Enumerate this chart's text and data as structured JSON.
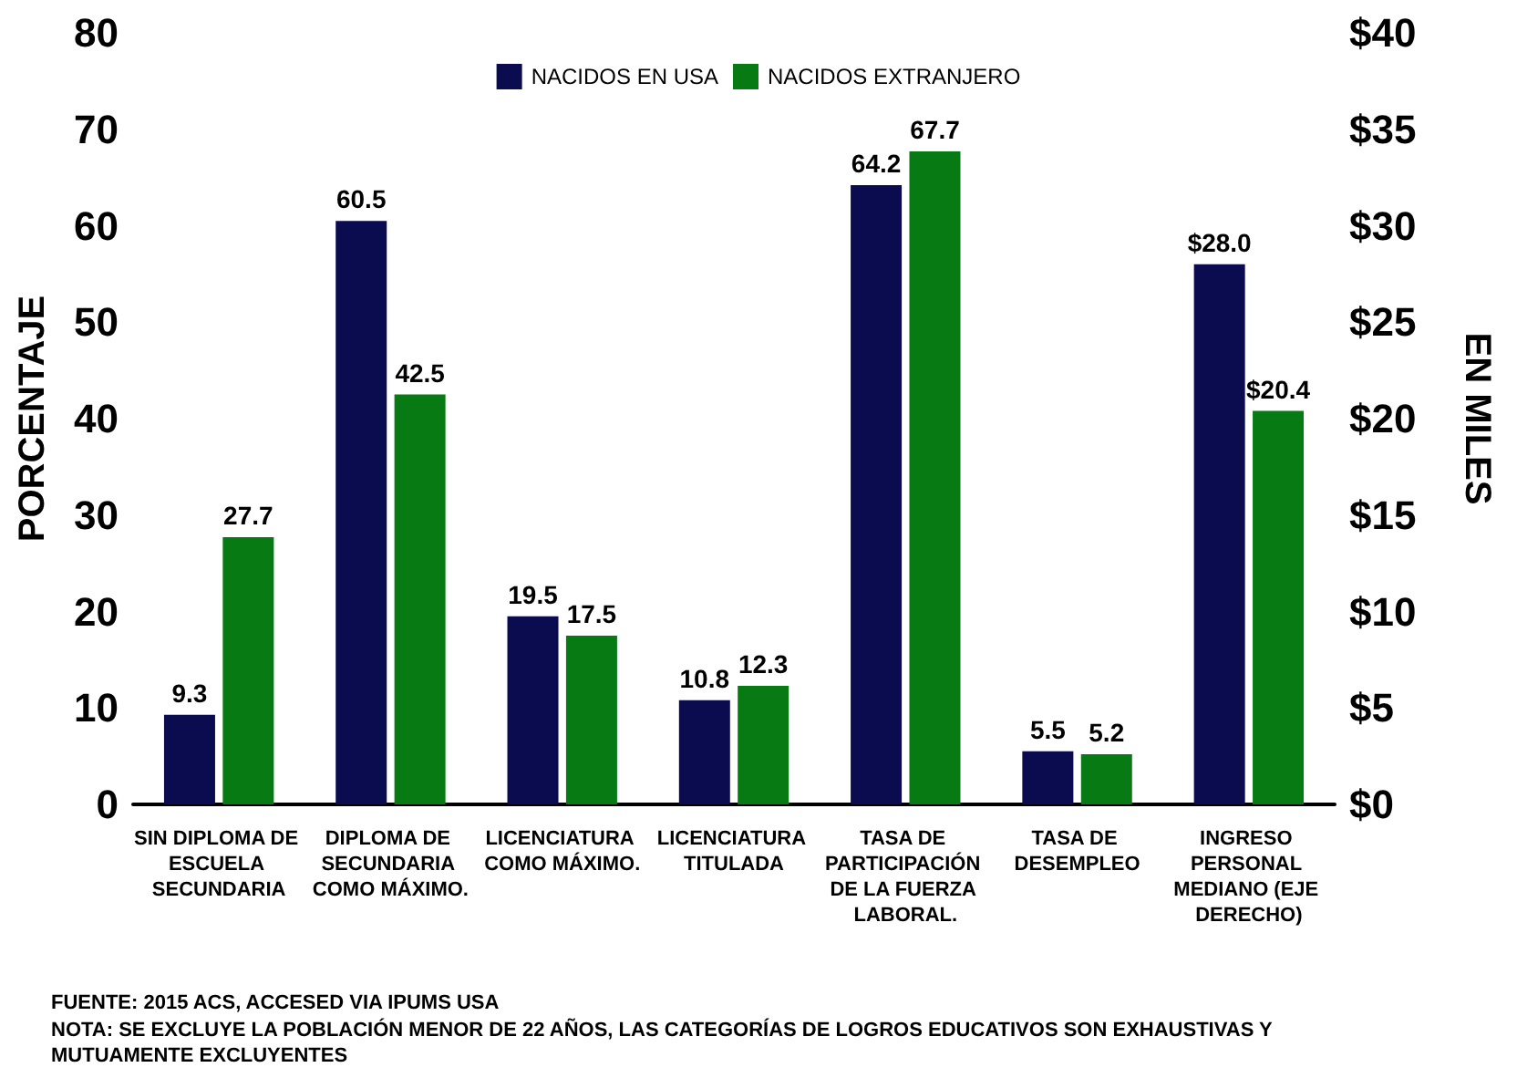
{
  "chart_data": {
    "type": "bar",
    "categories": [
      "SIN DIPLOMA DE ESCUELA SECUNDARIA",
      "DIPLOMA DE SECUNDARIA COMO MÁXIMO.",
      "LICENCIATURA COMO MÁXIMO.",
      "LICENCIATURA TITULADA",
      "TASA DE PARTICIPACIÓN DE LA FUERZA LABORAL.",
      "TASA DE DESEMPLEO",
      "INGRESO PERSONAL MEDIANO (EJE DERECHO)"
    ],
    "series": [
      {
        "name": "NACIDOS EN USA",
        "color": "#0b0b4f",
        "values": [
          9.3,
          60.5,
          19.5,
          10.8,
          64.2,
          5.5,
          null
        ],
        "value_labels": [
          "9.3",
          "60.5",
          "19.5",
          "10.8",
          "64.2",
          "5.5",
          null
        ]
      },
      {
        "name": "NACIDOS EXTRANJERO",
        "color": "#087a14",
        "values": [
          27.7,
          42.5,
          17.5,
          12.3,
          67.7,
          5.2,
          null
        ],
        "value_labels": [
          "27.7",
          "42.5",
          "17.5",
          "12.3",
          "67.7",
          "5.2",
          null
        ]
      },
      {
        "color": "#0b0b4f",
        "axis": "y2",
        "values": [
          null,
          null,
          null,
          null,
          null,
          null,
          28.0
        ],
        "value_labels": [
          null,
          null,
          null,
          null,
          null,
          null,
          "$28.0"
        ]
      },
      {
        "color": "#087a14",
        "axis": "y2",
        "values": [
          null,
          null,
          null,
          null,
          null,
          null,
          20.4
        ],
        "value_labels": [
          null,
          null,
          null,
          null,
          null,
          null,
          "$20.4"
        ]
      }
    ],
    "ylabel": "PORCENTAJE",
    "y2label": "EN MILES",
    "ylim": [
      0,
      80
    ],
    "yticks": [
      0,
      10,
      20,
      30,
      40,
      50,
      60,
      70,
      80
    ],
    "y2lim": [
      0,
      40
    ],
    "y2ticks": [
      {
        "value": 0,
        "label": "$0"
      },
      {
        "value": 5,
        "label": "$5"
      },
      {
        "value": 10,
        "label": "$10"
      },
      {
        "value": 15,
        "label": "$15"
      },
      {
        "value": 20,
        "label": "$20"
      },
      {
        "value": 25,
        "label": "$25"
      },
      {
        "value": 30,
        "label": "$30"
      },
      {
        "value": 35,
        "label": "$35"
      },
      {
        "value": 40,
        "label": "$40"
      }
    ],
    "legend": "top",
    "grid": false,
    "annotations": [
      "FUENTE: 2015 ACS, ACCESED VIA IPUMS USA",
      "NOTA: SE EXCLUYE LA POBLACIÓN MENOR DE 22 AÑOS, LAS CATEGORÍAS DE LOGROS EDUCATIVOS SON EXHAUSTIVAS Y MUTUAMENTE EXCLUYENTES"
    ]
  }
}
